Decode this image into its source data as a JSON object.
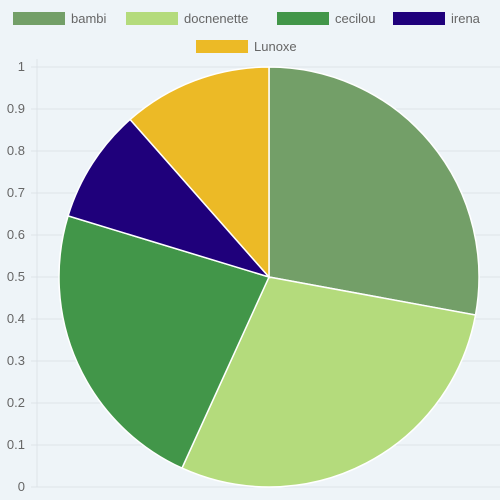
{
  "chart_data": {
    "type": "pie",
    "categories": [
      "bambi",
      "docnenette",
      "cecilou",
      "irena",
      "Lunoxe"
    ],
    "values": [
      27.9,
      28.9,
      22.9,
      8.8,
      11.5
    ],
    "colors": [
      "#739f68",
      "#b4db7c",
      "#429649",
      "#1f007b",
      "#ecba26"
    ],
    "slice_border_color": "#ffffff",
    "legend": {
      "position": "top",
      "items": [
        "bambi",
        "docnenette",
        "cecilou",
        "irena",
        "Lunoxe"
      ]
    },
    "y_axis": {
      "ticks": [
        "0",
        "0.1",
        "0.2",
        "0.3",
        "0.4",
        "0.5",
        "0.6",
        "0.7",
        "0.8",
        "0.9",
        "1"
      ],
      "ylim": [
        0,
        1
      ],
      "grid": true,
      "grid_color": "#dde3e8"
    },
    "title": "",
    "xlabel": "",
    "ylabel": ""
  }
}
